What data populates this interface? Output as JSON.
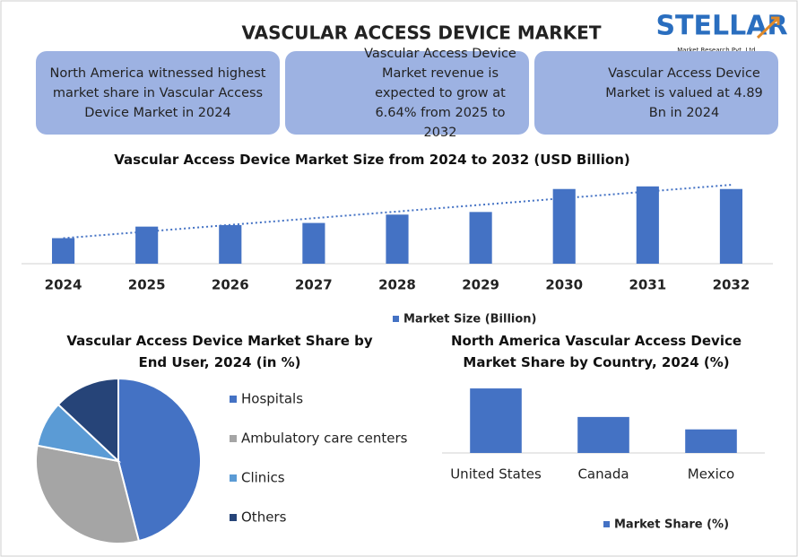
{
  "header": {
    "title": "VASCULAR ACCESS DEVICE MARKET",
    "logo": "STELLAR",
    "logo_tagline": "Market Research Pvt. Ltd."
  },
  "cards": [
    "North America witnessed highest market share in Vascular Access Device Market in 2024",
    "Vascular Access Device Market revenue is expected to grow at 6.64% from 2025 to 2032",
    "Vascular Access Device Market is valued at 4.89 Bn in 2024"
  ],
  "chart_data": [
    {
      "type": "bar",
      "title": "Vascular Access Device Market Size from 2024 to 2032 (USD Billion)",
      "categories": [
        "2024",
        "2025",
        "2026",
        "2027",
        "2028",
        "2029",
        "2030",
        "2031",
        "2032"
      ],
      "series": [
        {
          "name": "Market Size (Billion)",
          "color": "#4472c4",
          "values": [
            4.89,
            7.1,
            7.4,
            7.8,
            9.4,
            9.9,
            14.3,
            14.8,
            14.3
          ]
        }
      ],
      "ylim": [
        0,
        17
      ],
      "trendline": true
    },
    {
      "type": "pie",
      "title": "Vascular Access Device Market Share by End User, 2024 (in %)",
      "categories": [
        "Hospitals",
        "Ambulatory care centers",
        "Clinics",
        "Others"
      ],
      "values": [
        46,
        32,
        9,
        13
      ],
      "colors": [
        "#4472c4",
        "#a5a5a5",
        "#5b9bd5",
        "#264478"
      ]
    },
    {
      "type": "bar",
      "title": "North America Vascular Access Device Market Share by Country, 2024 (%)",
      "categories": [
        "United States",
        "Canada",
        "Mexico"
      ],
      "series": [
        {
          "name": "Market Share (%)",
          "color": "#4472c4",
          "values": [
            52,
            29,
            19
          ]
        }
      ],
      "ylim": [
        0,
        60
      ]
    }
  ]
}
